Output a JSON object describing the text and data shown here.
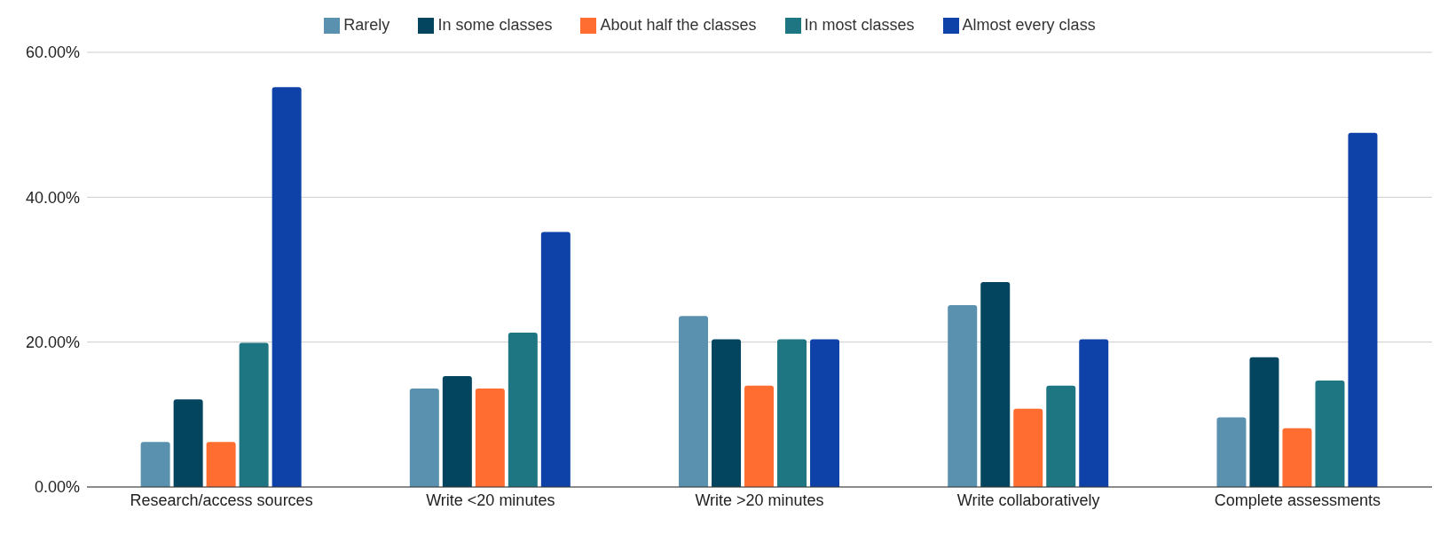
{
  "chart_data": {
    "type": "bar",
    "categories": [
      "Research/access sources",
      "Write <20 minutes",
      "Write >20 minutes",
      "Write collaboratively",
      "Complete assessments"
    ],
    "series": [
      {
        "name": "Rarely",
        "color": "#5a91af",
        "values": [
          6.2,
          13.6,
          23.6,
          25.1,
          9.6
        ]
      },
      {
        "name": "In some classes",
        "color": "#03445f",
        "values": [
          12.1,
          15.3,
          20.4,
          28.3,
          17.9
        ]
      },
      {
        "name": "About half the classes",
        "color": "#ff6d31",
        "values": [
          6.2,
          13.6,
          14.0,
          10.8,
          8.1
        ]
      },
      {
        "name": "In most classes",
        "color": "#1e7683",
        "values": [
          19.9,
          21.3,
          20.4,
          14.0,
          14.7
        ]
      },
      {
        "name": "Almost every class",
        "color": "#0f42a8",
        "values": [
          55.2,
          35.2,
          20.4,
          20.4,
          48.9
        ]
      }
    ],
    "ylim": [
      0,
      60
    ],
    "yticks": [
      {
        "value": 0,
        "label": "0.00%"
      },
      {
        "value": 20,
        "label": "20.00%"
      },
      {
        "value": 40,
        "label": "40.00%"
      },
      {
        "value": 60,
        "label": "60.00%"
      }
    ],
    "grid": "y",
    "legend": "top"
  }
}
